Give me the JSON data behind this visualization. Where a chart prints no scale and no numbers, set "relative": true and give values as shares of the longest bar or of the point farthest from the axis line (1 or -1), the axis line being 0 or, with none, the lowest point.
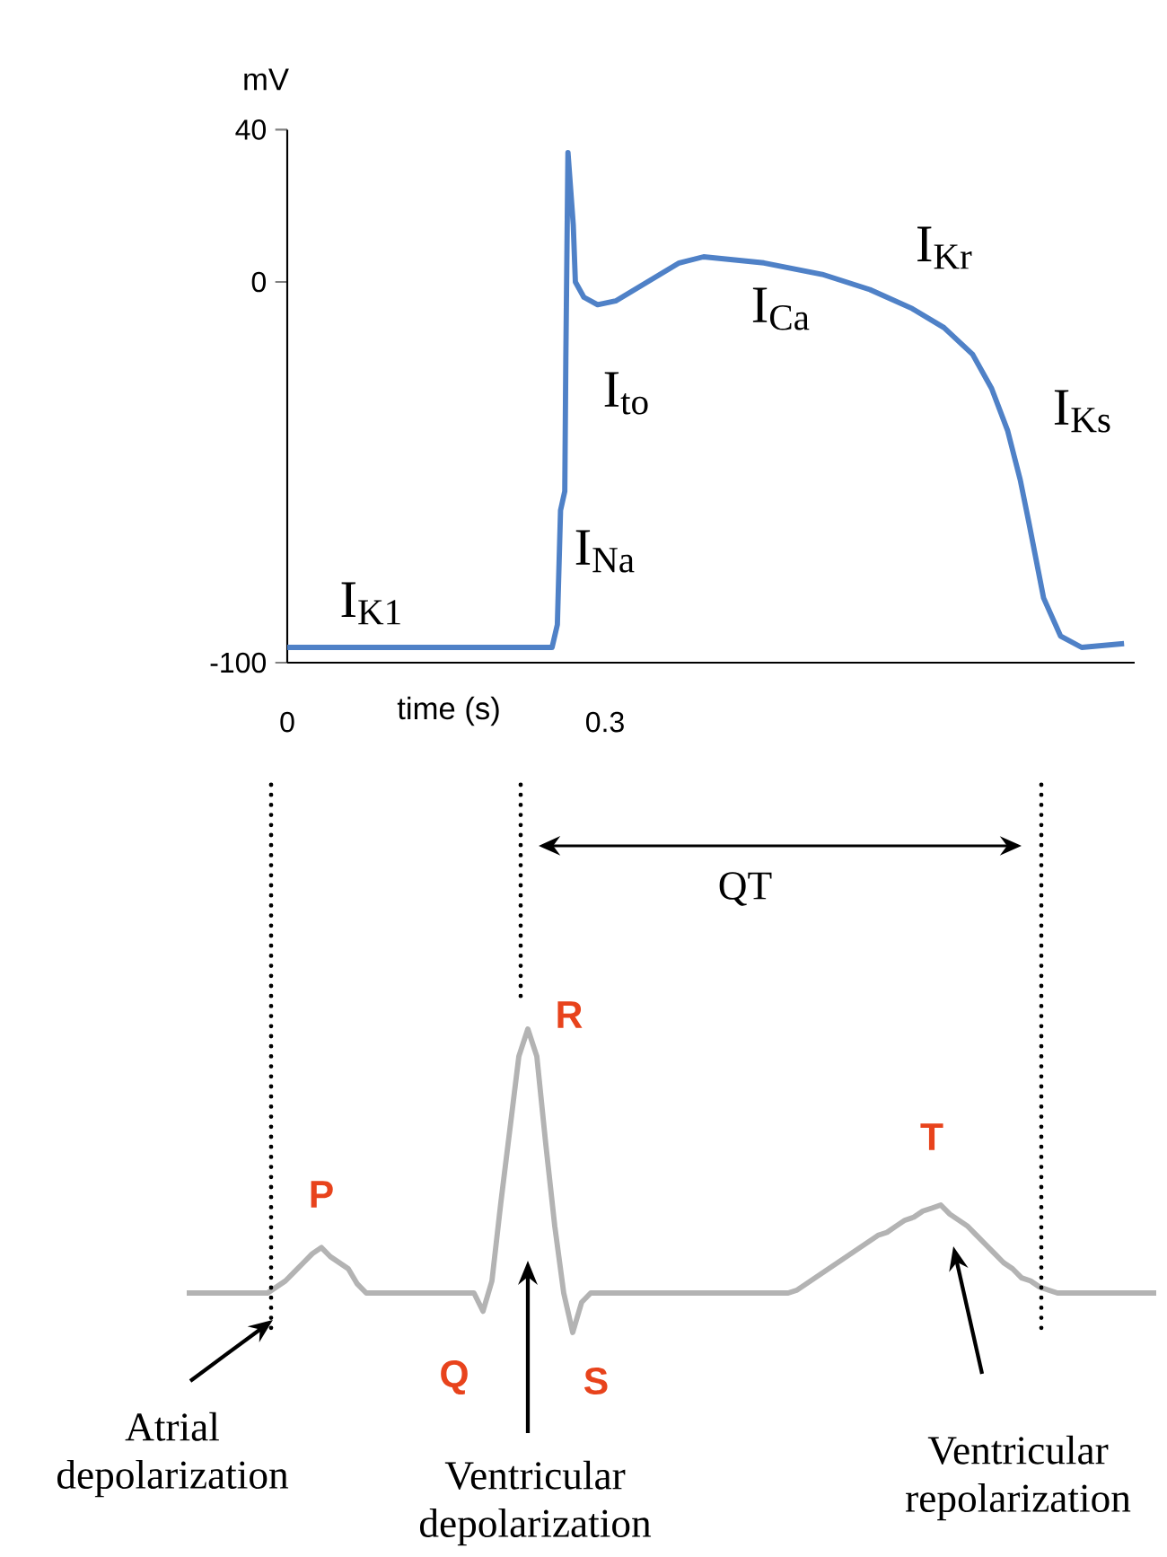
{
  "chart_data": [
    {
      "type": "line",
      "ylabel": "mV",
      "xlabel": "time (s)",
      "xlim": [
        0,
        0.8
      ],
      "ylim": [
        -100,
        40
      ],
      "xticks": [
        0,
        0.3
      ],
      "yticks": [
        -100,
        0,
        40
      ],
      "series": [
        {
          "color": "#4f81c7",
          "x": [
            0,
            0.25,
            0.255,
            0.258,
            0.262,
            0.263,
            0.265,
            0.27,
            0.272,
            0.28,
            0.293,
            0.31,
            0.34,
            0.37,
            0.393,
            0.45,
            0.505,
            0.55,
            0.59,
            0.62,
            0.647,
            0.665,
            0.68,
            0.692,
            0.7,
            0.714,
            0.73,
            0.75,
            0.79
          ],
          "values": [
            -96,
            -96,
            -90,
            -60,
            -55,
            -20,
            34,
            15,
            0,
            -4,
            -6,
            -5,
            0,
            5,
            6.6,
            5,
            2,
            -2,
            -7,
            -12,
            -19,
            -28,
            -39,
            -52,
            -63,
            -83,
            -93,
            -96,
            -95
          ]
        }
      ],
      "annotations": [
        "I$_{K1}$",
        "I$_{Na}$",
        "I$_{to}$",
        "I$_{Ca}$",
        "I$_{Kr}$",
        "I$_{Ks}$"
      ]
    },
    {
      "type": "line",
      "relative": true,
      "tick_labels": false,
      "categories": [
        null,
        null,
        null,
        null,
        null,
        null,
        null,
        null,
        null,
        null,
        null,
        null,
        null,
        null,
        null,
        null,
        null,
        null,
        null,
        null,
        null,
        null,
        null,
        null,
        null,
        null,
        null,
        null,
        null,
        null,
        null,
        null,
        null,
        null,
        null,
        null,
        null,
        null,
        null,
        null,
        null,
        null,
        null,
        null,
        null,
        null,
        null,
        null,
        null,
        null,
        null,
        null,
        null,
        null,
        null,
        null,
        null,
        null,
        null,
        null,
        null,
        null,
        null,
        null,
        null,
        null,
        null,
        null,
        null,
        null,
        null,
        null,
        null,
        null,
        null,
        null,
        null,
        null,
        null,
        null,
        null,
        null,
        null,
        null,
        null,
        null,
        null,
        null,
        null,
        null,
        null,
        null,
        null,
        null,
        null,
        null,
        null,
        null,
        null,
        null,
        null,
        null,
        null,
        null,
        null,
        null,
        null,
        null,
        null
      ],
      "series": [
        {
          "color": "#b3b3b3",
          "values": [
            0.13,
            0.13,
            0.13,
            0.13,
            0.13,
            0.13,
            0.13,
            0.13,
            0.13,
            0.13,
            0.15,
            0.17,
            0.2,
            0.23,
            0.26,
            0.28,
            0.25,
            0.23,
            0.21,
            0.16,
            0.13,
            0.13,
            0.13,
            0.13,
            0.13,
            0.13,
            0.13,
            0.13,
            0.13,
            0.13,
            0.13,
            0.13,
            0.13,
            0.07,
            0.17,
            0.43,
            0.67,
            0.91,
            1,
            0.91,
            0.62,
            0.35,
            0.13,
            0,
            0.1,
            0.13,
            0.13,
            0.13,
            0.13,
            0.13,
            0.13,
            0.13,
            0.13,
            0.13,
            0.13,
            0.13,
            0.13,
            0.13,
            0.13,
            0.13,
            0.13,
            0.13,
            0.13,
            0.13,
            0.13,
            0.13,
            0.13,
            0.13,
            0.14,
            0.16,
            0.18,
            0.2,
            0.22,
            0.24,
            0.26,
            0.28,
            0.3,
            0.32,
            0.33,
            0.35,
            0.37,
            0.38,
            0.4,
            0.41,
            0.42,
            0.39,
            0.37,
            0.35,
            0.32,
            0.29,
            0.26,
            0.23,
            0.21,
            0.18,
            0.17,
            0.15,
            0.14,
            0.13,
            0.13,
            0.13,
            0.13,
            0.13,
            0.13,
            0.13,
            0.13,
            0.13,
            0.13,
            0.13,
            0.13
          ]
        }
      ],
      "annotations": [
        "P",
        "Q",
        "R",
        "S",
        "T",
        "QT",
        "Atrial depolarization",
        "Ventricular depolarization",
        "Ventricular repolarization"
      ]
    }
  ]
}
